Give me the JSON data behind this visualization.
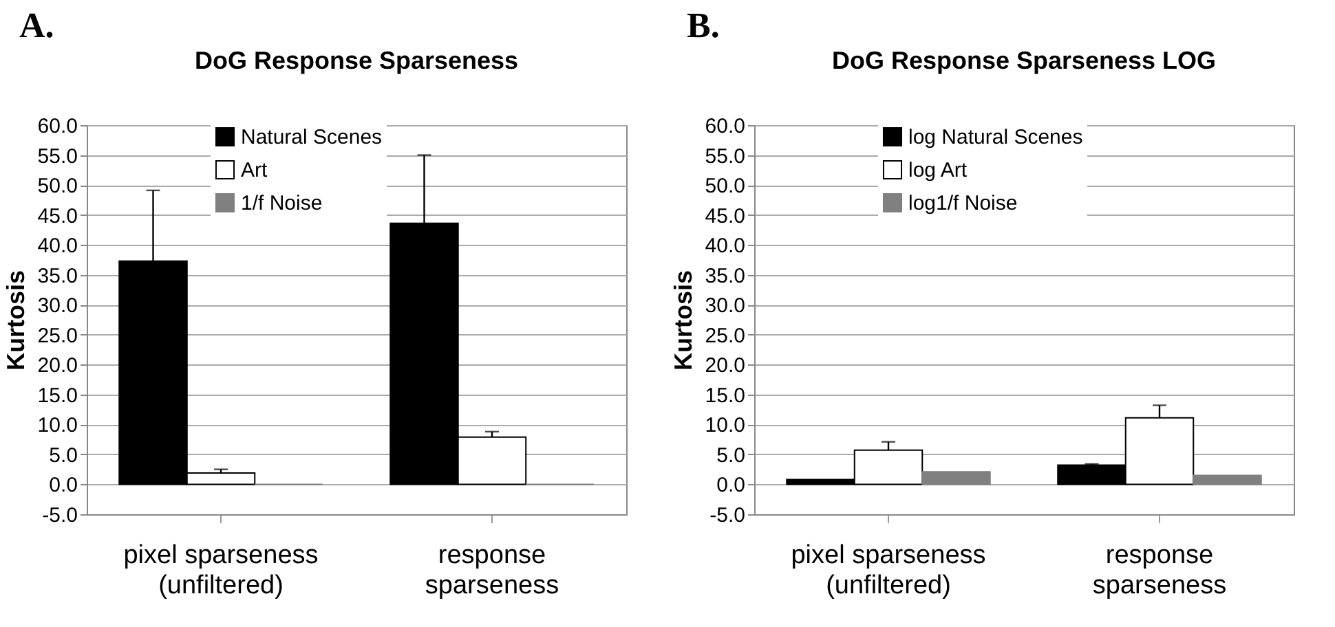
{
  "chart_data": [
    {
      "type": "bar",
      "title": "DoG Response Sparseness",
      "ylabel": "Kurtosis",
      "annotations": [
        "A."
      ],
      "categories": [
        "pixel sparseness\n(unfiltered)",
        "response\nsparseness"
      ],
      "series": [
        {
          "name": "Natural Scenes",
          "color": "#000000",
          "values": [
            37.3,
            43.6
          ],
          "errors": [
            [
              37.3,
              49.1
            ],
            [
              43.6,
              55.0
            ]
          ]
        },
        {
          "name": "Art",
          "color": "#ffffff",
          "values": [
            1.9,
            7.9
          ],
          "errors": [
            [
              1.9,
              2.5
            ],
            [
              7.9,
              8.8
            ]
          ]
        },
        {
          "name": "1/f Noise",
          "color": "#808080",
          "values": [
            0.0,
            0.0
          ]
        }
      ],
      "ylim": [
        -5,
        60
      ],
      "yticks": [
        {
          "value": -5,
          "label": "-5.0"
        },
        {
          "value": 0,
          "label": "0.0"
        },
        {
          "value": 5,
          "label": "5.0"
        },
        {
          "value": 10,
          "label": "10.0"
        },
        {
          "value": 15,
          "label": "15.0"
        },
        {
          "value": 20,
          "label": "20.0"
        },
        {
          "value": 25,
          "label": "25.0"
        },
        {
          "value": 30,
          "label": "30.0"
        },
        {
          "value": 35,
          "label": "35.0"
        },
        {
          "value": 40,
          "label": "40.0"
        },
        {
          "value": 45,
          "label": "45.0"
        },
        {
          "value": 50,
          "label": "50.0"
        },
        {
          "value": 55,
          "label": "55.0"
        },
        {
          "value": 60,
          "label": "60.0"
        }
      ],
      "grid": "y",
      "legend": "top"
    },
    {
      "type": "bar",
      "title": "DoG Response Sparseness LOG",
      "ylabel": "Kurtosis",
      "annotations": [
        "B."
      ],
      "categories": [
        "pixel sparseness\n(unfiltered)",
        "response\nsparseness"
      ],
      "series": [
        {
          "name": "log Natural Scenes",
          "color": "#000000",
          "values": [
            0.8,
            3.2
          ],
          "errors": [
            null,
            [
              3.2,
              3.4
            ]
          ]
        },
        {
          "name": "log Art",
          "color": "#ffffff",
          "values": [
            5.7,
            11.1
          ],
          "errors": [
            [
              5.7,
              7.1
            ],
            [
              11.1,
              13.2
            ]
          ]
        },
        {
          "name": "log1/f Noise",
          "color": "#808080",
          "values": [
            2.1,
            1.5
          ]
        }
      ],
      "ylim": [
        -5,
        60
      ],
      "yticks": [
        {
          "value": -5,
          "label": "-5.0"
        },
        {
          "value": 0,
          "label": "0.0"
        },
        {
          "value": 5,
          "label": "5.0"
        },
        {
          "value": 10,
          "label": "10.0"
        },
        {
          "value": 15,
          "label": "15.0"
        },
        {
          "value": 20,
          "label": "20.0"
        },
        {
          "value": 25,
          "label": "25.0"
        },
        {
          "value": 30,
          "label": "30.0"
        },
        {
          "value": 35,
          "label": "35.0"
        },
        {
          "value": 40,
          "label": "40.0"
        },
        {
          "value": 45,
          "label": "45.0"
        },
        {
          "value": 50,
          "label": "50.0"
        },
        {
          "value": 55,
          "label": "55.0"
        },
        {
          "value": 60,
          "label": "60.0"
        }
      ],
      "grid": "y",
      "legend": "top"
    }
  ]
}
